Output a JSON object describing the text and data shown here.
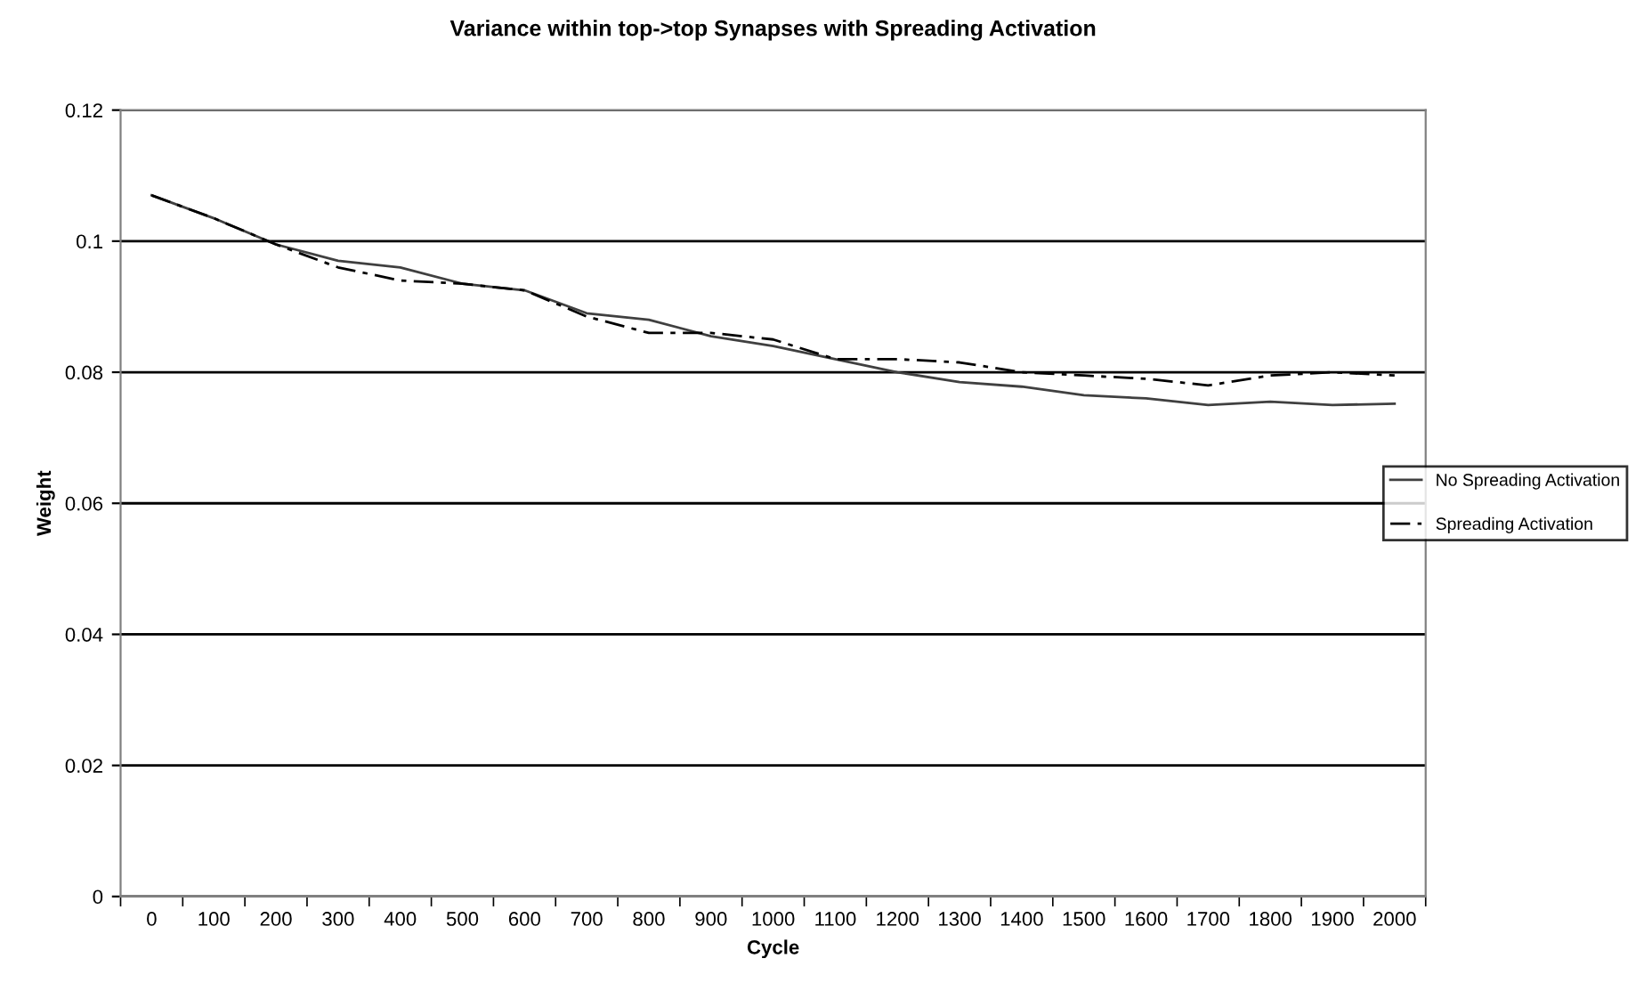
{
  "chart_data": {
    "type": "line",
    "title": "Variance within top->top Synapses with Spreading Activation",
    "xlabel": "Cycle",
    "ylabel": "Weight",
    "categories": [
      "0",
      "100",
      "200",
      "300",
      "400",
      "500",
      "600",
      "700",
      "800",
      "900",
      "1000",
      "1100",
      "1200",
      "1300",
      "1400",
      "1500",
      "1600",
      "1700",
      "1800",
      "1900",
      "2000"
    ],
    "series": [
      {
        "name": "No Spreading Activation",
        "color": "#404040",
        "line_style": "solid",
        "values": [
          0.107,
          0.1035,
          0.0995,
          0.097,
          0.096,
          0.0935,
          0.0925,
          0.089,
          0.088,
          0.0855,
          0.084,
          0.082,
          0.08,
          0.0785,
          0.0778,
          0.0765,
          0.076,
          0.075,
          0.0755,
          0.075,
          0.0752
        ]
      },
      {
        "name": "Spreading Activation",
        "color": "#000000",
        "line_style": "dashed",
        "values": [
          0.107,
          0.1035,
          0.0995,
          0.096,
          0.094,
          0.0935,
          0.0925,
          0.0885,
          0.086,
          0.086,
          0.085,
          0.082,
          0.082,
          0.0815,
          0.08,
          0.0795,
          0.079,
          0.078,
          0.0795,
          0.08,
          0.0795
        ]
      }
    ],
    "ylim": [
      0,
      0.12
    ],
    "yticks": [
      0,
      0.02,
      0.04,
      0.06,
      0.08,
      0.1,
      0.12
    ],
    "grid": "y",
    "legend": "right",
    "marker": "none"
  }
}
